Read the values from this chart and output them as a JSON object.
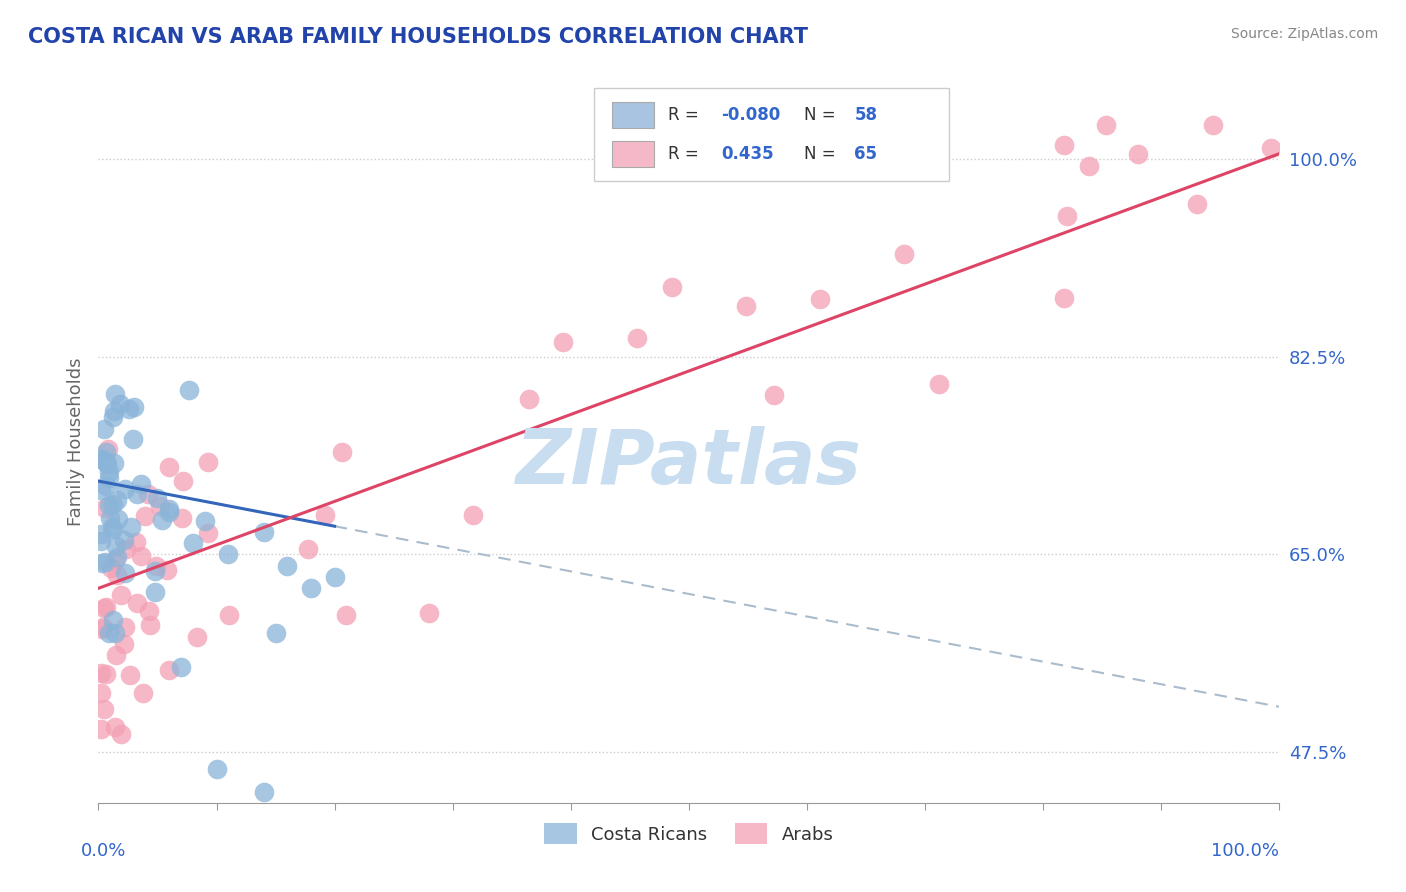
{
  "title": "COSTA RICAN VS ARAB FAMILY HOUSEHOLDS CORRELATION CHART",
  "source": "Source: ZipAtlas.com",
  "ylabel": "Family Households",
  "xlim": [
    0,
    100
  ],
  "ylim": [
    43,
    107
  ],
  "yticks": [
    47.5,
    65.0,
    82.5,
    100.0
  ],
  "ytick_labels": [
    "47.5%",
    "65.0%",
    "82.5%",
    "100.0%"
  ],
  "xtick_labels": [
    "0.0%",
    "100.0%"
  ],
  "costa_rican_R": -0.08,
  "costa_rican_N": 58,
  "arab_R": 0.435,
  "arab_N": 65,
  "blue_dot_color": "#8ab4d8",
  "pink_dot_color": "#f4a0b5",
  "blue_line_color": "#3366bb",
  "pink_line_color": "#dd4466",
  "legend_blue_patch": "#a8c4e0",
  "legend_pink_patch": "#f5b8c8",
  "title_color": "#2244aa",
  "ylabel_color": "#666666",
  "tick_label_color": "#3366cc",
  "r_value_color": "#3366cc",
  "n_value_color": "#3366cc",
  "label_dark": "#333333",
  "watermark": "ZIPatlas",
  "watermark_color": "#c8ddf0",
  "dashed_line_color": "#aabbcc",
  "grid_dotted_color": "#cccccc",
  "background_color": "#ffffff",
  "blue_trend_x0": 0,
  "blue_trend_y0": 71.5,
  "blue_trend_x1": 20,
  "blue_trend_y1": 67.5,
  "blue_dash_x0": 20,
  "blue_dash_y0": 67.5,
  "blue_dash_x1": 100,
  "blue_dash_y1": 51.5,
  "pink_trend_x0": 0,
  "pink_trend_y0": 62.0,
  "pink_trend_x1": 100,
  "pink_trend_y1": 100.5
}
